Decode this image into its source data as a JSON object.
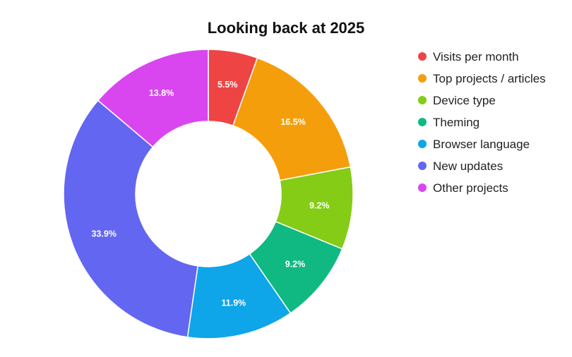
{
  "chart_data": {
    "type": "pie",
    "variant": "donut",
    "title": "Looking back at 2025",
    "legend_position": "right",
    "labels_shown_as": "percent",
    "slices": [
      {
        "name": "Visits per month",
        "value": 5.5,
        "label": "5.5%",
        "color": "#ef4444"
      },
      {
        "name": "Top projects / articles",
        "value": 16.5,
        "label": "16.5%",
        "color": "#f59e0b"
      },
      {
        "name": "Device type",
        "value": 9.2,
        "label": "9.2%",
        "color": "#84cc16"
      },
      {
        "name": "Theming",
        "value": 9.2,
        "label": "9.2%",
        "color": "#10b981"
      },
      {
        "name": "Browser language",
        "value": 11.9,
        "label": "11.9%",
        "color": "#0ea5e9"
      },
      {
        "name": "New updates",
        "value": 33.9,
        "label": "33.9%",
        "color": "#6366f1"
      },
      {
        "name": "Other projects",
        "value": 13.8,
        "label": "13.8%",
        "color": "#d946ef"
      }
    ]
  }
}
